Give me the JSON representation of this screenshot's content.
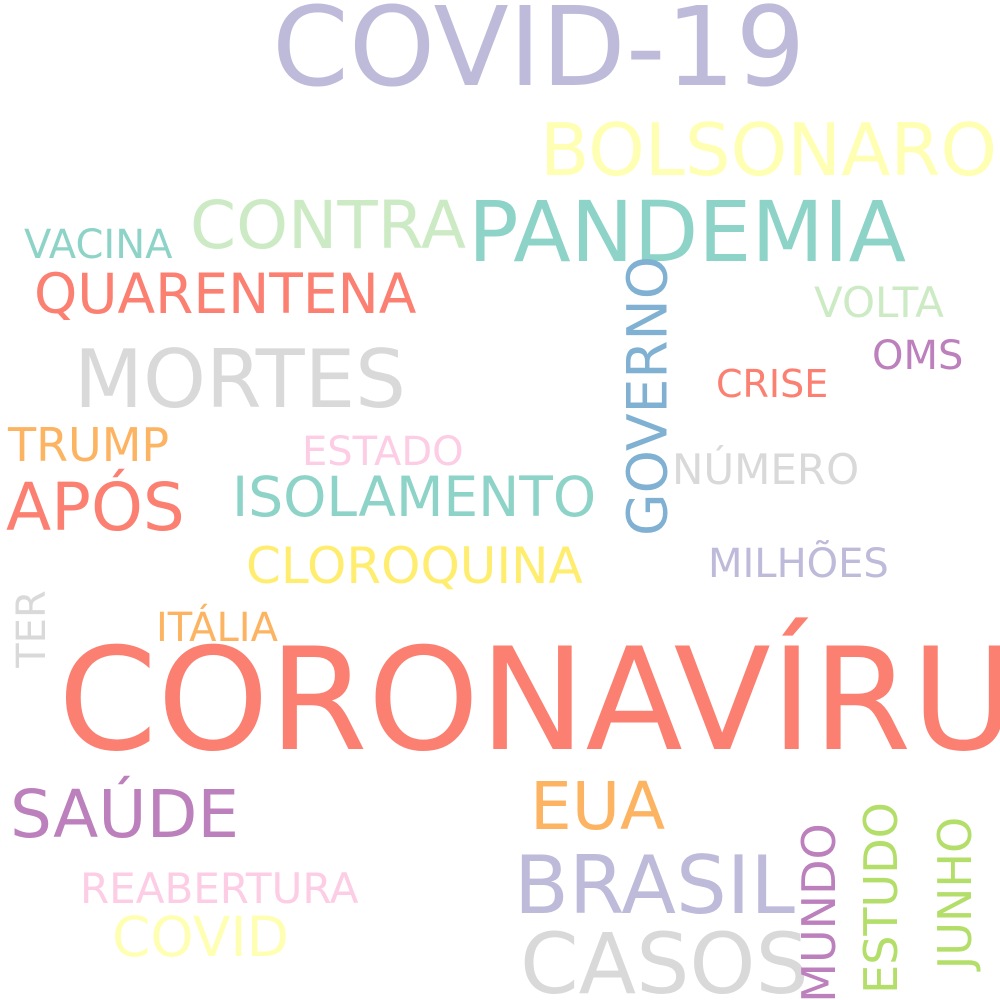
{
  "words": {
    "covid19": {
      "text": "COVID-19",
      "color": "#bebada"
    },
    "bolsonaro": {
      "text": "BOLSONARO",
      "color": "#ffffb3"
    },
    "contra": {
      "text": "CONTRA",
      "color": "#ccebc5"
    },
    "pandemia": {
      "text": "PANDEMIA",
      "color": "#8dd3c7"
    },
    "vacina": {
      "text": "VACINA",
      "color": "#8dd3c7"
    },
    "quarentena": {
      "text": "QUARENTENA",
      "color": "#fb8072"
    },
    "volta": {
      "text": "VOLTA",
      "color": "#ccebc5"
    },
    "mortes": {
      "text": "MORTES",
      "color": "#d9d9d9"
    },
    "oms": {
      "text": "OMS",
      "color": "#bc80bd"
    },
    "crise": {
      "text": "CRISE",
      "color": "#fb8072"
    },
    "governo": {
      "text": "GOVERNO",
      "color": "#80b1d3"
    },
    "trump": {
      "text": "TRUMP",
      "color": "#fdb462"
    },
    "estado": {
      "text": "ESTADO",
      "color": "#fccde5"
    },
    "numero": {
      "text": "NÚMERO",
      "color": "#d9d9d9"
    },
    "apos": {
      "text": "APÓS",
      "color": "#fb8072"
    },
    "isolamento": {
      "text": "ISOLAMENTO",
      "color": "#8dd3c7"
    },
    "cloroquina": {
      "text": "CLOROQUINA",
      "color": "#ffed6f"
    },
    "milhoes": {
      "text": "MILHÕES",
      "color": "#bebada"
    },
    "ter": {
      "text": "TER",
      "color": "#d9d9d9"
    },
    "italia": {
      "text": "ITÁLIA",
      "color": "#fdb462"
    },
    "coronavirus": {
      "text": "CORONAVÍRUS",
      "color": "#fb8072"
    },
    "eua": {
      "text": "EUA",
      "color": "#fdb462"
    },
    "saude": {
      "text": "SAÚDE",
      "color": "#bc80bd"
    },
    "brasil": {
      "text": "BRASIL",
      "color": "#bebada"
    },
    "reabertura": {
      "text": "REABERTURA",
      "color": "#fccde5"
    },
    "covid": {
      "text": "COVID",
      "color": "#ffffb3"
    },
    "casos": {
      "text": "CASOS",
      "color": "#d9d9d9"
    },
    "mundo": {
      "text": "MUNDO",
      "color": "#bc80bd"
    },
    "estudo": {
      "text": "ESTUDO",
      "color": "#b3de69"
    },
    "junho": {
      "text": "JUNHO",
      "color": "#b3de69"
    }
  }
}
